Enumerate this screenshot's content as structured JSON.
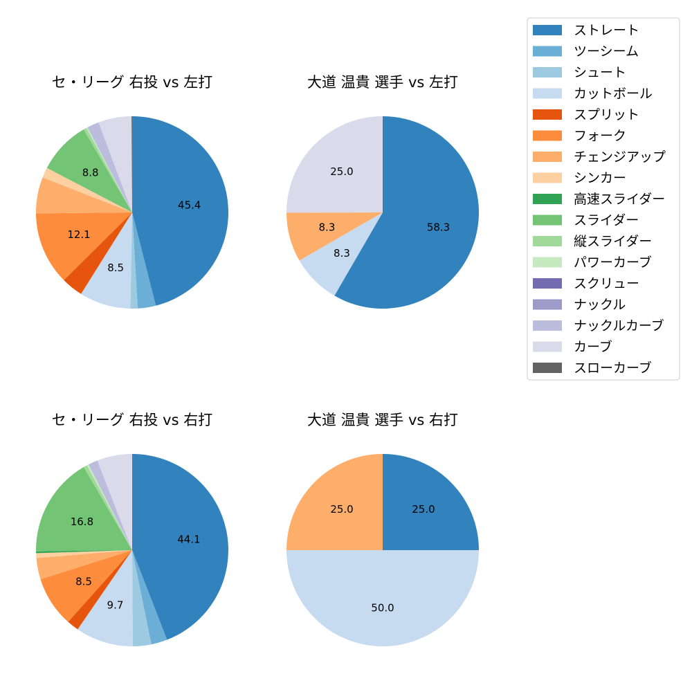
{
  "legend": {
    "items": [
      {
        "label": "ストレート",
        "color": "#3182bd"
      },
      {
        "label": "ツーシーム",
        "color": "#6baed6"
      },
      {
        "label": "シュート",
        "color": "#9ecae1"
      },
      {
        "label": "カットボール",
        "color": "#c6dbef"
      },
      {
        "label": "スプリット",
        "color": "#e6550d"
      },
      {
        "label": "フォーク",
        "color": "#fd8d3c"
      },
      {
        "label": "チェンジアップ",
        "color": "#fdae6b"
      },
      {
        "label": "シンカー",
        "color": "#fdd0a2"
      },
      {
        "label": "高速スライダー",
        "color": "#31a354"
      },
      {
        "label": "スライダー",
        "color": "#74c476"
      },
      {
        "label": "縦スライダー",
        "color": "#a1d99b"
      },
      {
        "label": "パワーカーブ",
        "color": "#c7e9c0"
      },
      {
        "label": "スクリュー",
        "color": "#756bb1"
      },
      {
        "label": "ナックル",
        "color": "#9e9ac8"
      },
      {
        "label": "ナックルカーブ",
        "color": "#bcbddc"
      },
      {
        "label": "カーブ",
        "color": "#dadaeb"
      },
      {
        "label": "スローカーブ",
        "color": "#636363"
      }
    ]
  },
  "chart_data": [
    {
      "type": "pie",
      "title": "セ・リーグ 右投 vs 左打",
      "slices": [
        {
          "label": "ストレート",
          "value": 45.4,
          "shown_label": "45.4"
        },
        {
          "label": "ツーシーム",
          "value": 3.0
        },
        {
          "label": "シュート",
          "value": 1.2
        },
        {
          "label": "カットボール",
          "value": 8.5,
          "shown_label": "8.5"
        },
        {
          "label": "スプリット",
          "value": 3.6
        },
        {
          "label": "フォーク",
          "value": 12.1,
          "shown_label": "12.1"
        },
        {
          "label": "チェンジアップ",
          "value": 6.0
        },
        {
          "label": "シンカー",
          "value": 1.7
        },
        {
          "label": "スライダー",
          "value": 8.8,
          "shown_label": "8.8"
        },
        {
          "label": "縦スライダー",
          "value": 0.5
        },
        {
          "label": "パワーカーブ",
          "value": 0.2
        },
        {
          "label": "ナックルカーブ",
          "value": 2.0
        },
        {
          "label": "カーブ",
          "value": 5.5
        },
        {
          "label": "スローカーブ",
          "value": 0.1
        }
      ]
    },
    {
      "type": "pie",
      "title": "大道 温貴 選手 vs 左打",
      "slices": [
        {
          "label": "ストレート",
          "value": 58.3,
          "shown_label": "58.3"
        },
        {
          "label": "カットボール",
          "value": 8.3,
          "shown_label": "8.3"
        },
        {
          "label": "チェンジアップ",
          "value": 8.3,
          "shown_label": "8.3"
        },
        {
          "label": "カーブ",
          "value": 25.0,
          "shown_label": "25.0"
        }
      ]
    },
    {
      "type": "pie",
      "title": "セ・リーグ 右投 vs 右打",
      "slices": [
        {
          "label": "ストレート",
          "value": 44.1,
          "shown_label": "44.1"
        },
        {
          "label": "ツーシーム",
          "value": 2.7
        },
        {
          "label": "シュート",
          "value": 3.1
        },
        {
          "label": "カットボール",
          "value": 9.7,
          "shown_label": "9.7"
        },
        {
          "label": "スプリット",
          "value": 2.0
        },
        {
          "label": "フォーク",
          "value": 8.5,
          "shown_label": "8.5"
        },
        {
          "label": "チェンジアップ",
          "value": 3.6
        },
        {
          "label": "シンカー",
          "value": 0.8
        },
        {
          "label": "高速スライダー",
          "value": 0.3
        },
        {
          "label": "スライダー",
          "value": 16.8,
          "shown_label": "16.8"
        },
        {
          "label": "縦スライダー",
          "value": 0.6
        },
        {
          "label": "パワーカーブ",
          "value": 0.3
        },
        {
          "label": "ナックルカーブ",
          "value": 1.6
        },
        {
          "label": "カーブ",
          "value": 5.9
        }
      ]
    },
    {
      "type": "pie",
      "title": "大道 温貴 選手 vs 右打",
      "slices": [
        {
          "label": "ストレート",
          "value": 25.0,
          "shown_label": "25.0"
        },
        {
          "label": "カットボール",
          "value": 50.0,
          "shown_label": "50.0"
        },
        {
          "label": "チェンジアップ",
          "value": 25.0,
          "shown_label": "25.0"
        }
      ]
    }
  ]
}
